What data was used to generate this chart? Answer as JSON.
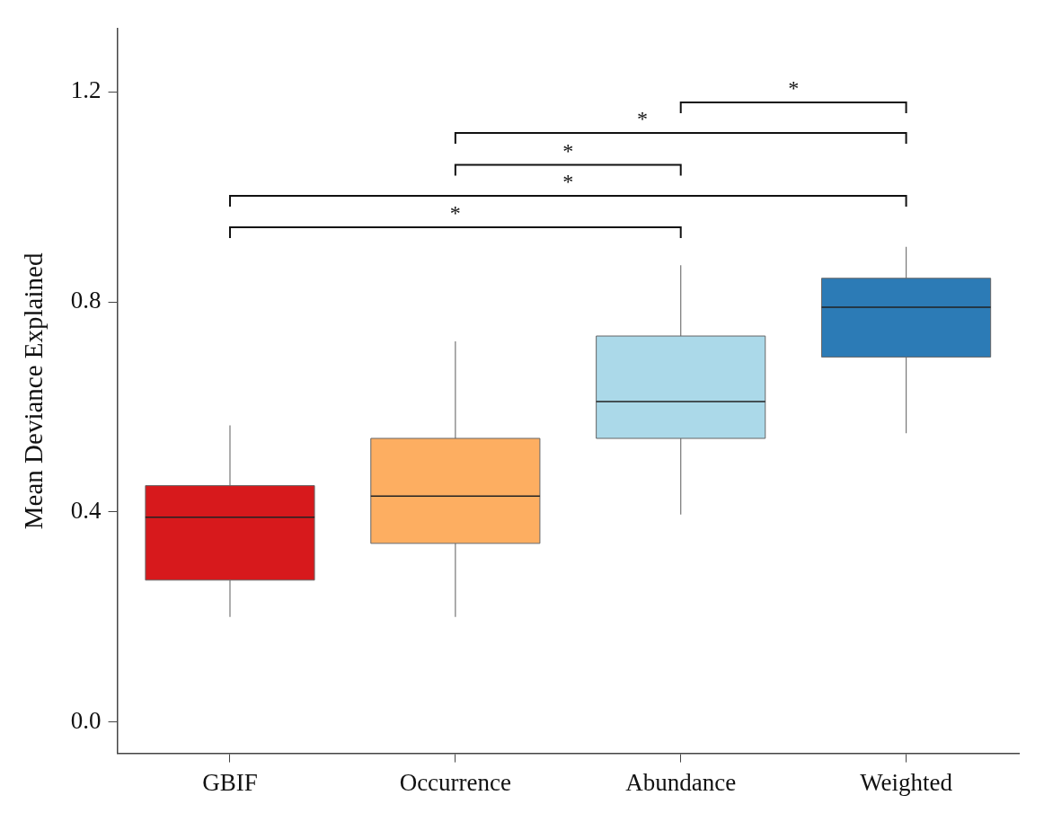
{
  "chart_data": {
    "type": "box",
    "ylabel": "Mean Deviance Explained",
    "categories": [
      "GBIF",
      "Occurrence",
      "Abundance",
      "Weighted"
    ],
    "colors": [
      "#d7191c",
      "#fdae61",
      "#abd9e9",
      "#2c7bb6"
    ],
    "boxes": [
      {
        "low": 0.2,
        "q1": 0.27,
        "median": 0.39,
        "q3": 0.45,
        "high": 0.565
      },
      {
        "low": 0.2,
        "q1": 0.34,
        "median": 0.43,
        "q3": 0.54,
        "high": 0.725
      },
      {
        "low": 0.395,
        "q1": 0.54,
        "median": 0.61,
        "q3": 0.735,
        "high": 0.87
      },
      {
        "low": 0.55,
        "q1": 0.695,
        "median": 0.79,
        "q3": 0.845,
        "high": 0.905
      }
    ],
    "ylim": [
      -0.06,
      1.32
    ],
    "yticks": [
      {
        "value": 0,
        "label": "0.0"
      },
      0.4,
      0.8,
      1.2
    ],
    "grid": false,
    "annotations": [
      "*",
      "*",
      "*",
      "*",
      "*"
    ]
  }
}
